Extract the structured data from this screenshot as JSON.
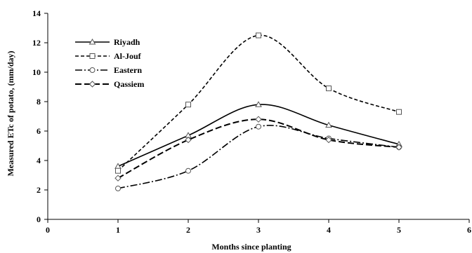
{
  "chart_data": {
    "type": "line",
    "title": "",
    "xlabel": "Months since planting",
    "ylabel": "Measured ETc of potato, (mm/day)",
    "xlim": [
      0,
      6
    ],
    "ylim": [
      0,
      14
    ],
    "xticks": [
      0,
      1,
      2,
      3,
      4,
      5,
      6
    ],
    "yticks": [
      0,
      2,
      4,
      6,
      8,
      10,
      12,
      14
    ],
    "grid": false,
    "legend": "top-left",
    "x": [
      1,
      2,
      3,
      4,
      5
    ],
    "series": [
      {
        "name": "Riyadh",
        "values": [
          3.6,
          5.7,
          7.8,
          6.4,
          5.1
        ],
        "marker": "triangle",
        "dash": "solid"
      },
      {
        "name": "Al-Jouf",
        "values": [
          3.3,
          7.8,
          12.5,
          8.9,
          7.3
        ],
        "marker": "square",
        "dash": "dashed"
      },
      {
        "name": "Eastern",
        "values": [
          2.1,
          3.3,
          6.3,
          5.5,
          4.9
        ],
        "marker": "circle",
        "dash": "dashdot"
      },
      {
        "name": "Qassiem",
        "values": [
          2.8,
          5.4,
          6.8,
          5.4,
          4.9
        ],
        "marker": "diamond",
        "dash": "longdash"
      }
    ]
  }
}
